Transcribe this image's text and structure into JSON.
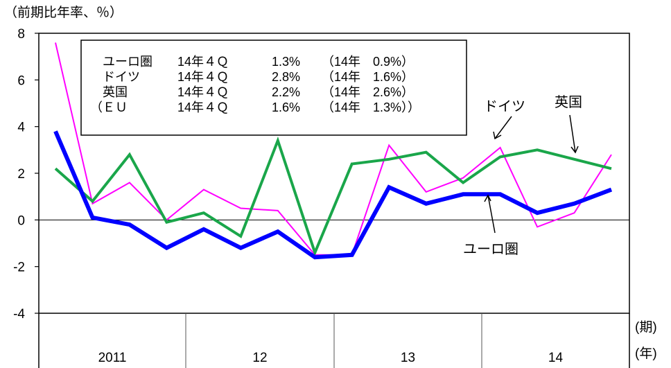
{
  "chart_data": {
    "type": "line",
    "title": "",
    "y_unit_label": "（前期比年率、％）",
    "ylim": [
      -4,
      8
    ],
    "y_ticks": [
      "8",
      "6",
      "4",
      "2",
      "0",
      "-2",
      "-4"
    ],
    "x_period_label": "(期)",
    "x_year_label": "(年)",
    "years": [
      "2011",
      "12",
      "13",
      "14"
    ],
    "x": [
      "2011Q1",
      "2011Q2",
      "2011Q3",
      "2011Q4",
      "2012Q1",
      "2012Q2",
      "2012Q3",
      "2012Q4",
      "2013Q1",
      "2013Q2",
      "2013Q3",
      "2013Q4",
      "2014Q1",
      "2014Q2",
      "2014Q3",
      "2014Q4"
    ],
    "series": [
      {
        "name": "ユーロ圏",
        "color": "#0000ff",
        "values": [
          3.8,
          0.1,
          -0.2,
          -1.2,
          -0.4,
          -1.2,
          -0.5,
          -1.6,
          -1.5,
          1.4,
          0.7,
          1.1,
          1.1,
          0.3,
          0.7,
          1.3
        ]
      },
      {
        "name": "ドイツ",
        "color": "#ff00ff",
        "values": [
          7.6,
          0.7,
          1.6,
          0.0,
          1.3,
          0.5,
          0.4,
          -1.5,
          -1.5,
          3.2,
          1.2,
          1.8,
          3.1,
          -0.3,
          0.3,
          2.8
        ]
      },
      {
        "name": "英国",
        "color": "#1aa64a",
        "values": [
          2.2,
          0.8,
          2.8,
          -0.1,
          0.3,
          -0.7,
          3.4,
          -1.4,
          2.4,
          2.6,
          2.9,
          1.6,
          2.7,
          3.0,
          2.6,
          2.2
        ]
      }
    ],
    "legend_rows": [
      {
        "name": "ユーロ圏",
        "quarter": "14年４Ｑ",
        "q_value": "1.3%",
        "annual": "（14年　0.9%）"
      },
      {
        "name": "ドイツ",
        "quarter": "14年４Ｑ",
        "q_value": "2.8%",
        "annual": "（14年　1.6%）"
      },
      {
        "name": "英国",
        "quarter": "14年４Ｑ",
        "q_value": "2.2%",
        "annual": "（14年　2.6%）"
      },
      {
        "name": "（ＥＵ",
        "quarter": "14年４Ｑ",
        "q_value": "1.6%",
        "annual": "（14年　1.3%））"
      }
    ],
    "annotations": {
      "germany": "ドイツ",
      "uk": "英国",
      "eurozone": "ユーロ圏"
    },
    "grid": false,
    "zero_line": true
  }
}
